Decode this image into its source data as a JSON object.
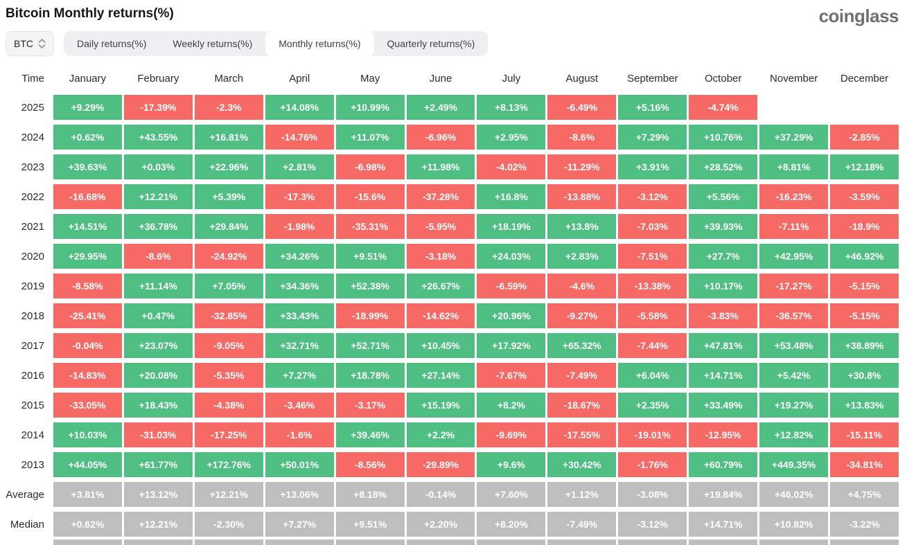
{
  "page": {
    "title": "Bitcoin Monthly returns(%)",
    "logo_text": "coinglass"
  },
  "controls": {
    "symbol_selector": {
      "value": "BTC",
      "icon": "sort-arrows-icon"
    },
    "tabs": [
      {
        "label": "Daily returns(%)",
        "active": false
      },
      {
        "label": "Weekly returns(%)",
        "active": false
      },
      {
        "label": "Monthly returns(%)",
        "active": true
      },
      {
        "label": "Quarterly returns(%)",
        "active": false
      }
    ]
  },
  "chart_data": {
    "type": "heatmap",
    "title": "Bitcoin Monthly returns(%)",
    "time_column_header": "Time",
    "columns": [
      "January",
      "February",
      "March",
      "April",
      "May",
      "June",
      "July",
      "August",
      "September",
      "October",
      "November",
      "December"
    ],
    "rows": [
      {
        "label": "2025",
        "kind": "year",
        "values": [
          "+9.29%",
          "-17.39%",
          "-2.3%",
          "+14.08%",
          "+10.99%",
          "+2.49%",
          "+8.13%",
          "-6.49%",
          "+5.16%",
          "-4.74%",
          "",
          ""
        ]
      },
      {
        "label": "2024",
        "kind": "year",
        "values": [
          "+0.62%",
          "+43.55%",
          "+16.81%",
          "-14.76%",
          "+11.07%",
          "-6.96%",
          "+2.95%",
          "-8.6%",
          "+7.29%",
          "+10.76%",
          "+37.29%",
          "-2.85%"
        ]
      },
      {
        "label": "2023",
        "kind": "year",
        "values": [
          "+39.63%",
          "+0.03%",
          "+22.96%",
          "+2.81%",
          "-6.98%",
          "+11.98%",
          "-4.02%",
          "-11.29%",
          "+3.91%",
          "+28.52%",
          "+8.81%",
          "+12.18%"
        ]
      },
      {
        "label": "2022",
        "kind": "year",
        "values": [
          "-16.68%",
          "+12.21%",
          "+5.39%",
          "-17.3%",
          "-15.6%",
          "-37.28%",
          "+16.8%",
          "-13.88%",
          "-3.12%",
          "+5.56%",
          "-16.23%",
          "-3.59%"
        ]
      },
      {
        "label": "2021",
        "kind": "year",
        "values": [
          "+14.51%",
          "+36.78%",
          "+29.84%",
          "-1.98%",
          "-35.31%",
          "-5.95%",
          "+18.19%",
          "+13.8%",
          "-7.03%",
          "+39.93%",
          "-7.11%",
          "-18.9%"
        ]
      },
      {
        "label": "2020",
        "kind": "year",
        "values": [
          "+29.95%",
          "-8.6%",
          "-24.92%",
          "+34.26%",
          "+9.51%",
          "-3.18%",
          "+24.03%",
          "+2.83%",
          "-7.51%",
          "+27.7%",
          "+42.95%",
          "+46.92%"
        ]
      },
      {
        "label": "2019",
        "kind": "year",
        "values": [
          "-8.58%",
          "+11.14%",
          "+7.05%",
          "+34.36%",
          "+52.38%",
          "+26.67%",
          "-6.59%",
          "-4.6%",
          "-13.38%",
          "+10.17%",
          "-17.27%",
          "-5.15%"
        ]
      },
      {
        "label": "2018",
        "kind": "year",
        "values": [
          "-25.41%",
          "+0.47%",
          "-32.85%",
          "+33.43%",
          "-18.99%",
          "-14.62%",
          "+20.96%",
          "-9.27%",
          "-5.58%",
          "-3.83%",
          "-36.57%",
          "-5.15%"
        ]
      },
      {
        "label": "2017",
        "kind": "year",
        "values": [
          "-0.04%",
          "+23.07%",
          "-9.05%",
          "+32.71%",
          "+52.71%",
          "+10.45%",
          "+17.92%",
          "+65.32%",
          "-7.44%",
          "+47.81%",
          "+53.48%",
          "+38.89%"
        ]
      },
      {
        "label": "2016",
        "kind": "year",
        "values": [
          "-14.83%",
          "+20.08%",
          "-5.35%",
          "+7.27%",
          "+18.78%",
          "+27.14%",
          "-7.67%",
          "-7.49%",
          "+6.04%",
          "+14.71%",
          "+5.42%",
          "+30.8%"
        ]
      },
      {
        "label": "2015",
        "kind": "year",
        "values": [
          "-33.05%",
          "+18.43%",
          "-4.38%",
          "-3.46%",
          "-3.17%",
          "+15.19%",
          "+8.2%",
          "-18.67%",
          "+2.35%",
          "+33.49%",
          "+19.27%",
          "+13.83%"
        ]
      },
      {
        "label": "2014",
        "kind": "year",
        "values": [
          "+10.03%",
          "-31.03%",
          "-17.25%",
          "-1.6%",
          "+39.46%",
          "+2.2%",
          "-9.69%",
          "-17.55%",
          "-19.01%",
          "-12.95%",
          "+12.82%",
          "-15.11%"
        ]
      },
      {
        "label": "2013",
        "kind": "year",
        "values": [
          "+44.05%",
          "+61.77%",
          "+172.76%",
          "+50.01%",
          "-8.56%",
          "-29.89%",
          "+9.6%",
          "+30.42%",
          "-1.76%",
          "+60.79%",
          "+449.35%",
          "-34.81%"
        ]
      },
      {
        "label": "Average",
        "kind": "summary",
        "values": [
          "+3.81%",
          "+13.12%",
          "+12.21%",
          "+13.06%",
          "+8.18%",
          "-0.14%",
          "+7.60%",
          "+1.12%",
          "-3.08%",
          "+19.84%",
          "+46.02%",
          "+4.75%"
        ]
      },
      {
        "label": "Median",
        "kind": "summary",
        "values": [
          "+0.62%",
          "+12.21%",
          "-2.30%",
          "+7.27%",
          "+9.51%",
          "+2.20%",
          "+8.20%",
          "-7.49%",
          "-3.12%",
          "+14.71%",
          "+10.82%",
          "-3.22%"
        ]
      }
    ],
    "has_cutoff_row": true,
    "colors": {
      "positive": "#4EBE82",
      "negative": "#F76964",
      "summary": "#BEBEBE",
      "cell_text": "#FFFFFF"
    }
  }
}
